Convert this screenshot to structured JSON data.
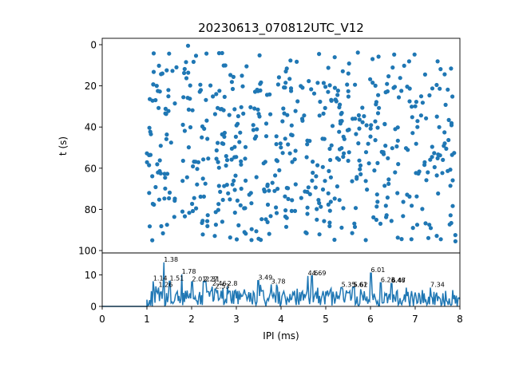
{
  "title": "20230613_070812UTC_V12",
  "colors": {
    "series": "#1f77b4",
    "axes": "#000000",
    "background": "#ffffff"
  },
  "chart_data": [
    {
      "type": "scatter",
      "title": "20230613_070812UTC_V12",
      "xlabel": "",
      "ylabel": "t (s)",
      "xlim": [
        0,
        8
      ],
      "ylim": [
        0,
        100
      ],
      "y_inverted": true,
      "yticks": [
        "0",
        "20",
        "40",
        "60",
        "80",
        "100"
      ],
      "grid": false,
      "seed": 12345,
      "points": [
        [
          1.92,
          0.5
        ],
        [
          3.52,
          5.2
        ],
        [
          6.18,
          5.8
        ],
        [
          4.35,
          8.3
        ],
        [
          1.66,
          11.0
        ],
        [
          1.22,
          20.0
        ],
        [
          1.48,
          22.0
        ],
        [
          2.55,
          24.0
        ],
        [
          4.05,
          31.0
        ],
        [
          5.6,
          36.0
        ],
        [
          7.05,
          40.0
        ],
        [
          2.9,
          50.5
        ],
        [
          5.1,
          56.0
        ],
        [
          6.55,
          62.0
        ],
        [
          3.7,
          68.0
        ],
        [
          1.05,
          72.0
        ],
        [
          2.1,
          79.5
        ],
        [
          4.8,
          85.0
        ],
        [
          6.95,
          89.0
        ],
        [
          1.12,
          95.0
        ],
        [
          7.9,
          95.5
        ]
      ]
    },
    {
      "type": "line",
      "xlabel": "IPI (ms)",
      "ylabel": "",
      "xlim": [
        0,
        8
      ],
      "ylim": [
        0,
        17
      ],
      "xticks": [
        "0",
        "1",
        "2",
        "3",
        "4",
        "5",
        "6",
        "7",
        "8"
      ],
      "yticks": [
        "0",
        "10"
      ],
      "grid": false,
      "peaks": [
        {
          "x": 1.14,
          "y": 8.0,
          "label": "1.14"
        },
        {
          "x": 1.26,
          "y": 6.0,
          "label": "1.26"
        },
        {
          "x": 1.38,
          "y": 14.0,
          "label": "1.38"
        },
        {
          "x": 1.51,
          "y": 8.0,
          "label": "1.51"
        },
        {
          "x": 1.78,
          "y": 10.2,
          "label": "1.78"
        },
        {
          "x": 2.01,
          "y": 7.8,
          "label": "2.01"
        },
        {
          "x": 2.27,
          "y": 7.8,
          "label": "2.27"
        },
        {
          "x": 2.31,
          "y": 7.8,
          "label": "2.31"
        },
        {
          "x": 2.46,
          "y": 6.3,
          "label": "2.46"
        },
        {
          "x": 2.53,
          "y": 5.5,
          "label": "2.53"
        },
        {
          "x": 2.8,
          "y": 6.3,
          "label": "2.8"
        },
        {
          "x": 3.49,
          "y": 8.2,
          "label": "3.49"
        },
        {
          "x": 3.78,
          "y": 7.0,
          "label": "3.78"
        },
        {
          "x": 4.69,
          "y": 9.7,
          "label": "4.69"
        },
        {
          "x": 4.6,
          "y": 9.7,
          "label": "4.6"
        },
        {
          "x": 5.35,
          "y": 6.0,
          "label": "5.35"
        },
        {
          "x": 5.62,
          "y": 6.0,
          "label": "5.62"
        },
        {
          "x": 5.61,
          "y": 6.0,
          "label": "5.61"
        },
        {
          "x": 6.01,
          "y": 10.6,
          "label": "6.01"
        },
        {
          "x": 6.23,
          "y": 7.5,
          "label": "6.23"
        },
        {
          "x": 6.46,
          "y": 7.3,
          "label": "6.46"
        },
        {
          "x": 6.47,
          "y": 7.3,
          "label": "6.47"
        },
        {
          "x": 7.34,
          "y": 6.0,
          "label": "7.34"
        }
      ]
    }
  ]
}
